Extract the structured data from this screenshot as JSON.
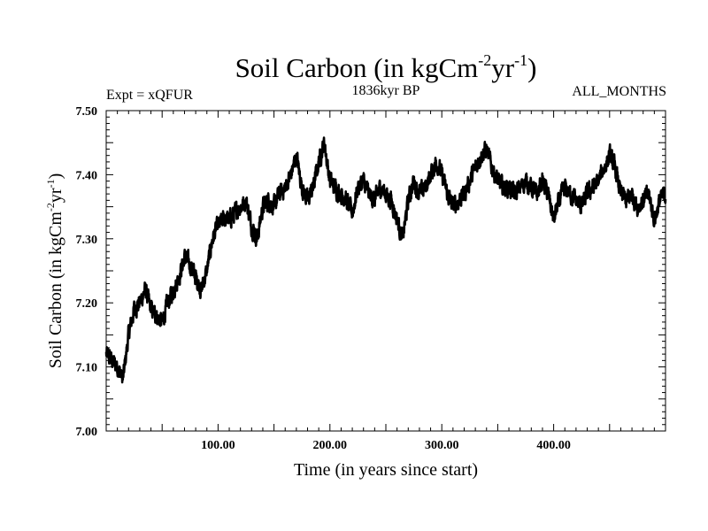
{
  "chart_data": {
    "type": "line",
    "title": {
      "main": "Soil Carbon (in kgCm",
      "sup1": "-2",
      "mid": "yr",
      "sup2": "-1",
      "end": ")"
    },
    "subtitle_left": "Expt = xQFUR",
    "subtitle_center": "1836kyr BP",
    "subtitle_right": "ALL_MONTHS",
    "xlabel": "Time (in years since start)",
    "ylabel": {
      "main": "Soil Carbon (in kgCm",
      "sup1": "-2",
      "mid": "yr",
      "sup2": "-1",
      "end": ")"
    },
    "xlim": [
      0,
      500
    ],
    "ylim": [
      7.0,
      7.5
    ],
    "x_ticks": [
      100,
      200,
      300,
      400
    ],
    "x_tick_labels": [
      "100.00",
      "200.00",
      "300.00",
      "400.00"
    ],
    "y_ticks": [
      7.0,
      7.1,
      7.2,
      7.3,
      7.4,
      7.5
    ],
    "y_tick_labels": [
      "7.00",
      "7.10",
      "7.20",
      "7.30",
      "7.40",
      "7.50"
    ],
    "grid": false,
    "series": [
      {
        "name": "Soil Carbon",
        "color": "#000000",
        "x": [
          0,
          5,
          10,
          15,
          20,
          25,
          30,
          35,
          40,
          45,
          50,
          55,
          60,
          65,
          70,
          75,
          80,
          85,
          90,
          95,
          100,
          105,
          110,
          115,
          120,
          125,
          130,
          135,
          140,
          145,
          150,
          155,
          160,
          165,
          170,
          175,
          180,
          185,
          190,
          195,
          200,
          205,
          210,
          215,
          220,
          225,
          230,
          235,
          240,
          245,
          250,
          255,
          260,
          265,
          270,
          275,
          280,
          285,
          290,
          295,
          300,
          305,
          310,
          315,
          320,
          325,
          330,
          335,
          340,
          345,
          350,
          355,
          360,
          365,
          370,
          375,
          380,
          385,
          390,
          395,
          400,
          405,
          410,
          415,
          420,
          425,
          430,
          435,
          440,
          445,
          450,
          455,
          460,
          465,
          470,
          475,
          480,
          485,
          490,
          495,
          500
        ],
        "values": [
          7.12,
          7.11,
          7.1,
          7.08,
          7.15,
          7.19,
          7.2,
          7.22,
          7.19,
          7.18,
          7.17,
          7.2,
          7.22,
          7.24,
          7.27,
          7.26,
          7.24,
          7.22,
          7.25,
          7.3,
          7.32,
          7.33,
          7.33,
          7.34,
          7.35,
          7.36,
          7.32,
          7.3,
          7.35,
          7.36,
          7.35,
          7.37,
          7.38,
          7.4,
          7.43,
          7.38,
          7.36,
          7.38,
          7.42,
          7.45,
          7.39,
          7.38,
          7.37,
          7.36,
          7.34,
          7.38,
          7.39,
          7.37,
          7.36,
          7.38,
          7.37,
          7.36,
          7.33,
          7.3,
          7.36,
          7.39,
          7.37,
          7.38,
          7.4,
          7.42,
          7.4,
          7.37,
          7.35,
          7.36,
          7.37,
          7.39,
          7.41,
          7.43,
          7.44,
          7.41,
          7.39,
          7.38,
          7.38,
          7.37,
          7.38,
          7.39,
          7.38,
          7.37,
          7.39,
          7.37,
          7.33,
          7.36,
          7.38,
          7.37,
          7.36,
          7.35,
          7.37,
          7.38,
          7.39,
          7.41,
          7.43,
          7.41,
          7.37,
          7.36,
          7.37,
          7.35,
          7.36,
          7.37,
          7.33,
          7.36,
          7.37
        ]
      }
    ]
  }
}
